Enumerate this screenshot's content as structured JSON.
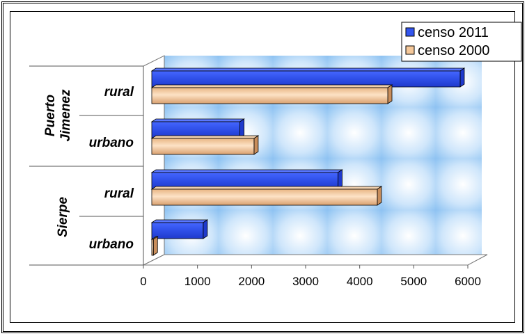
{
  "chart_data": {
    "type": "bar",
    "orientation": "horizontal",
    "groups": [
      {
        "label": "Puerto Jimenez",
        "categories": [
          "rural",
          "urbano"
        ]
      },
      {
        "label": "Sierpe",
        "categories": [
          "rural",
          "urbano"
        ]
      }
    ],
    "categories": [
      "Puerto Jimenez rural",
      "Puerto Jimenez urbano",
      "Sierpe rural",
      "Sierpe urbano"
    ],
    "series": [
      {
        "name": "censo 2011",
        "color": "#3355ee",
        "values": [
          5880,
          1680,
          3550,
          980
        ]
      },
      {
        "name": "censo 2000",
        "color": "#f5c89a",
        "values": [
          4500,
          1950,
          4300,
          30
        ]
      }
    ],
    "xlim": [
      0,
      6000
    ],
    "xticks": [
      0,
      1000,
      2000,
      3000,
      4000,
      5000,
      6000
    ],
    "legend_position": "top-right",
    "grid": false
  }
}
